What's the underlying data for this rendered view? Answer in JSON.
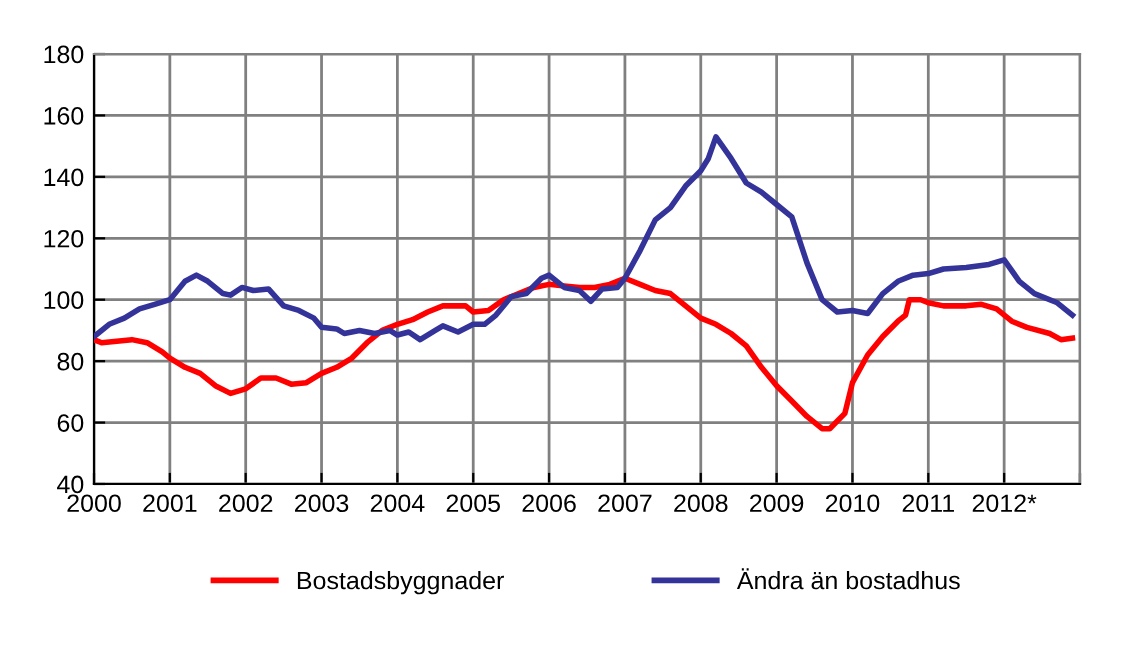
{
  "chart_data": {
    "type": "line",
    "xlim": [
      2000,
      2013
    ],
    "ylim": [
      40,
      180
    ],
    "xticks": [
      2000,
      2001,
      2002,
      2003,
      2004,
      2005,
      2006,
      2007,
      2008,
      2009,
      2010,
      2011,
      {
        "value": 2012,
        "label": "2012*"
      },
      {
        "value": 2013,
        "label": null
      }
    ],
    "yticks": [
      40,
      60,
      80,
      100,
      120,
      140,
      160,
      180
    ],
    "grid": true,
    "legend": "bottom",
    "marker": "none",
    "line_style": "solid",
    "series": [
      {
        "name": "Bostadsbyggnader",
        "color": "#ff0000",
        "x": [
          2000.0,
          2000.1,
          2000.3,
          2000.5,
          2000.7,
          2000.9,
          2001.0,
          2001.2,
          2001.4,
          2001.6,
          2001.8,
          2002.0,
          2002.2,
          2002.4,
          2002.6,
          2002.8,
          2003.0,
          2003.2,
          2003.4,
          2003.6,
          2003.8,
          2004.0,
          2004.2,
          2004.4,
          2004.6,
          2004.9,
          2005.0,
          2005.2,
          2005.4,
          2005.6,
          2005.8,
          2006.0,
          2006.2,
          2006.4,
          2006.6,
          2006.8,
          2007.0,
          2007.2,
          2007.4,
          2007.6,
          2007.8,
          2008.0,
          2008.2,
          2008.4,
          2008.6,
          2008.8,
          2009.0,
          2009.2,
          2009.4,
          2009.6,
          2009.7,
          2009.9,
          2010.0,
          2010.2,
          2010.4,
          2010.6,
          2010.7,
          2010.75,
          2010.9,
          2011.0,
          2011.2,
          2011.5,
          2011.7,
          2011.9,
          2012.1,
          2012.3,
          2012.6,
          2012.75,
          2012.9
        ],
        "values": [
          87,
          86,
          86.5,
          87,
          86,
          83,
          81,
          78,
          76,
          72,
          69.5,
          71,
          74.5,
          74.5,
          72.5,
          73,
          76,
          78,
          81,
          86,
          90,
          92,
          93.5,
          96,
          98,
          98,
          96,
          96.5,
          100,
          102,
          104,
          105,
          104.5,
          104,
          104,
          105,
          107,
          105,
          103,
          102,
          98,
          94,
          92,
          89,
          85,
          78,
          72,
          67,
          62,
          58,
          58,
          63,
          73,
          82,
          88,
          93,
          95,
          100,
          100,
          99,
          98,
          98,
          98.5,
          97,
          93,
          91,
          89,
          87,
          87.5
        ]
      },
      {
        "name": "Ändra än bostadhus",
        "color": "#333399",
        "x": [
          2000.0,
          2000.2,
          2000.4,
          2000.6,
          2000.8,
          2001.0,
          2001.2,
          2001.35,
          2001.5,
          2001.7,
          2001.8,
          2001.95,
          2002.1,
          2002.3,
          2002.5,
          2002.7,
          2002.9,
          2003.0,
          2003.2,
          2003.3,
          2003.5,
          2003.7,
          2003.9,
          2004.0,
          2004.15,
          2004.3,
          2004.5,
          2004.6,
          2004.8,
          2005.0,
          2005.15,
          2005.3,
          2005.5,
          2005.7,
          2005.9,
          2006.0,
          2006.2,
          2006.4,
          2006.55,
          2006.7,
          2006.9,
          2007.0,
          2007.2,
          2007.4,
          2007.6,
          2007.8,
          2008.0,
          2008.1,
          2008.2,
          2008.4,
          2008.6,
          2008.8,
          2009.0,
          2009.2,
          2009.4,
          2009.6,
          2009.8,
          2010.0,
          2010.2,
          2010.4,
          2010.6,
          2010.8,
          2011.0,
          2011.2,
          2011.5,
          2011.8,
          2012.0,
          2012.2,
          2012.4,
          2012.7,
          2012.9
        ],
        "values": [
          88,
          92,
          94,
          97,
          98.5,
          100,
          106,
          108,
          106,
          102,
          101.5,
          104,
          103,
          103.5,
          98,
          96.5,
          94,
          91,
          90.5,
          89,
          90,
          89,
          90,
          88.5,
          89.5,
          87,
          90,
          91.5,
          89.5,
          92,
          92,
          95,
          101,
          102,
          107,
          108,
          104,
          103,
          99.5,
          103.5,
          104,
          107,
          116,
          126,
          130,
          137,
          142,
          146,
          153,
          146,
          138,
          135,
          131,
          127,
          112,
          100,
          96,
          96.5,
          95.5,
          102,
          106,
          108,
          108.5,
          110,
          110.5,
          111.5,
          113,
          106,
          102,
          99,
          95
        ]
      }
    ]
  }
}
